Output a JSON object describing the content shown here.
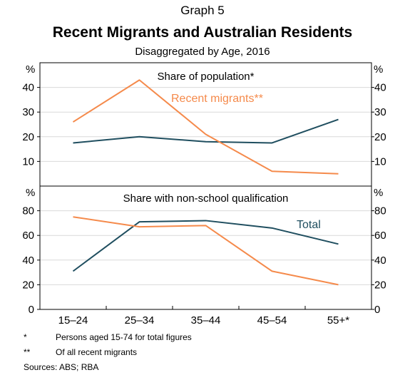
{
  "header": {
    "graph_number": "Graph 5",
    "title": "Recent Migrants and Australian Residents",
    "subtitle": "Disaggregated by Age, 2016"
  },
  "colors": {
    "total": "#1f4e5f",
    "recent_migrants": "#f58a4b",
    "axis": "#000000",
    "grid": "#d9d9d9"
  },
  "chart_data": [
    {
      "type": "line",
      "title": "Share of population*",
      "ylabel_left": "%",
      "ylabel_right": "%",
      "ylim": [
        0,
        50
      ],
      "yticks": [
        10,
        20,
        30,
        40
      ],
      "categories": [
        "15–24",
        "25–34",
        "35–44",
        "45–54",
        "55+*"
      ],
      "series": [
        {
          "name": "Total",
          "values": [
            17.5,
            20,
            18,
            17.5,
            27
          ]
        },
        {
          "name": "Recent migrants**",
          "values": [
            26,
            43,
            21,
            6,
            5
          ]
        }
      ],
      "annotation": "Recent migrants**",
      "grid": true
    },
    {
      "type": "line",
      "title": "Share with non-school qualification",
      "ylabel_left": "%",
      "ylabel_right": "%",
      "ylim": [
        0,
        100
      ],
      "yticks": [
        0,
        20,
        40,
        60,
        80
      ],
      "categories": [
        "15–24",
        "25–34",
        "35–44",
        "45–54",
        "55+*"
      ],
      "series": [
        {
          "name": "Total",
          "values": [
            31,
            71,
            72,
            66,
            53
          ]
        },
        {
          "name": "Recent migrants**",
          "values": [
            75,
            67,
            68,
            31,
            20
          ]
        }
      ],
      "annotation": "Total",
      "grid": true
    }
  ],
  "footnotes": [
    {
      "mark": "*",
      "text": "Persons aged 15-74 for total figures"
    },
    {
      "mark": "**",
      "text": "Of all recent migrants"
    }
  ],
  "sources": "Sources:   ABS; RBA"
}
